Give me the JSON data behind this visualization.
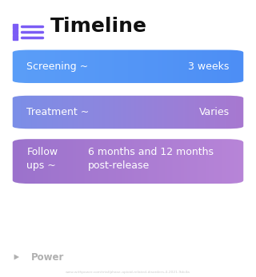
{
  "title": "Timeline",
  "title_icon_color": "#7B5CF5",
  "title_fontsize": 18,
  "title_fontweight": "bold",
  "title_color": "#111111",
  "background_color": "#ffffff",
  "footer_text": "Power",
  "footer_icon_color": "#aaaaaa",
  "url_text": "www.withpower.com/trial/phase-opioid-related-disorders-4-2021-9dc4a",
  "cards": [
    {
      "label_left": "Screening ~",
      "label_right": "3 weeks",
      "gradient_left": "#5B9EF8",
      "gradient_right": "#4D8EF5",
      "text_color": "#ffffff",
      "multiline": false,
      "left_label_lines": [
        "Screening ~"
      ],
      "right_label_lines": [
        "3 weeks"
      ]
    },
    {
      "label_left": "Treatment ~",
      "label_right": "Varies",
      "gradient_left": "#7B8FE8",
      "gradient_right": "#A878D0",
      "text_color": "#ffffff",
      "multiline": false,
      "left_label_lines": [
        "Treatment ~"
      ],
      "right_label_lines": [
        "Varies"
      ]
    },
    {
      "label_left": "Follow\nups ~",
      "label_right": "6 months and 12 months\npost-release",
      "gradient_left": "#9B72CC",
      "gradient_right": "#B885D8",
      "text_color": "#ffffff",
      "multiline": true,
      "left_label_lines": [
        "Follow",
        "ups ~"
      ],
      "right_label_lines": [
        "6 months and 12 months",
        "post-release"
      ]
    }
  ]
}
